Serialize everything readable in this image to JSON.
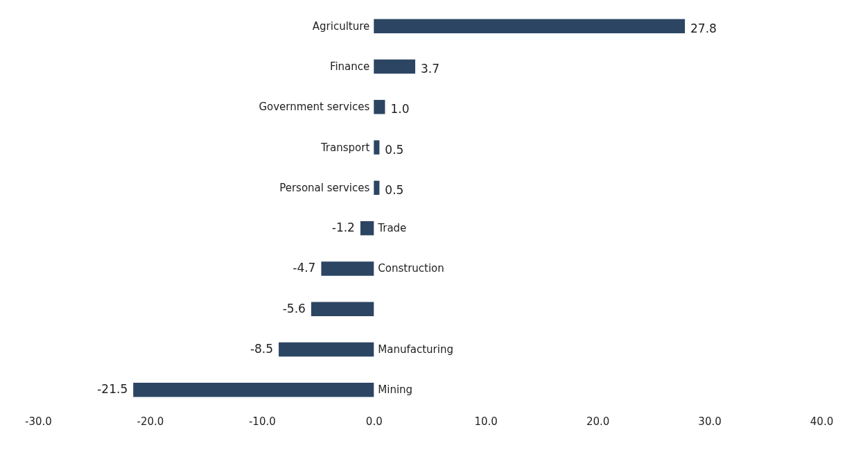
{
  "chart_data": {
    "type": "bar",
    "orientation": "horizontal",
    "categories": [
      "Agriculture",
      "Finance",
      "Government services",
      "Transport",
      "Personal services",
      "Trade",
      "Construction",
      null,
      "Manufacturing",
      "Mining"
    ],
    "values": [
      27.8,
      3.7,
      1.0,
      0.5,
      0.5,
      -1.2,
      -4.7,
      -5.6,
      -8.5,
      -21.5
    ],
    "value_labels": [
      "27.8",
      "3.7",
      "1.0",
      "0.5",
      "0.5",
      "-1.2",
      "-4.7",
      "-5.6",
      "-8.5",
      "-21.5"
    ],
    "color": "#2c4563",
    "xlim": [
      -30,
      40
    ],
    "xticks": [
      {
        "value": -30,
        "label": "-30.0"
      },
      {
        "value": -20,
        "label": "-20.0"
      },
      {
        "value": -10,
        "label": "-10.0"
      },
      {
        "value": 0,
        "label": "0.0"
      },
      {
        "value": 10,
        "label": "10.0"
      },
      {
        "value": 20,
        "label": "20.0"
      },
      {
        "value": 30,
        "label": "30.0"
      },
      {
        "value": 40,
        "label": "40.0"
      }
    ],
    "grid": false
  }
}
